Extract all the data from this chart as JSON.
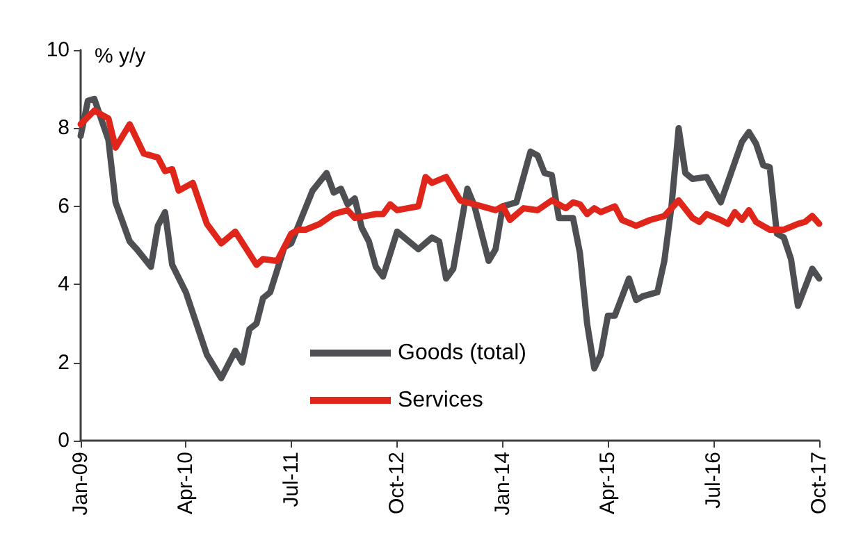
{
  "chart_data": {
    "type": "line",
    "ylabel": "% y/y",
    "xlim": [
      "2009-01",
      "2017-10"
    ],
    "xticks": [
      {
        "value": "2009-01",
        "label": "Jan-09"
      },
      {
        "value": "2010-04",
        "label": "Apr-10"
      },
      {
        "value": "2011-07",
        "label": "Jul-11"
      },
      {
        "value": "2012-10",
        "label": "Oct-12"
      },
      {
        "value": "2014-01",
        "label": "Jan-14"
      },
      {
        "value": "2015-04",
        "label": "Apr-15"
      },
      {
        "value": "2016-07",
        "label": "Jul-16"
      },
      {
        "value": "2017-10",
        "label": "Oct-17"
      }
    ],
    "ylim": [
      0,
      10
    ],
    "yticks": [
      0,
      2,
      4,
      6,
      8,
      10
    ],
    "grid": false,
    "legend": "bottom",
    "marker": "none",
    "line_style": "solid",
    "series": [
      {
        "name": "Goods (total)",
        "color": "#4d4f53",
        "x": [
          "2009-01",
          "2009-02",
          "2009-03",
          "2009-05",
          "2009-06",
          "2009-08",
          "2009-09",
          "2009-11",
          "2009-12",
          "2010-01",
          "2010-02",
          "2010-04",
          "2010-07",
          "2010-09",
          "2010-11",
          "2010-12",
          "2011-01",
          "2011-02",
          "2011-03",
          "2011-04",
          "2011-06",
          "2011-07",
          "2011-10",
          "2011-12",
          "2012-01",
          "2012-02",
          "2012-03",
          "2012-04",
          "2012-05",
          "2012-06",
          "2012-07",
          "2012-08",
          "2012-10",
          "2013-01",
          "2013-03",
          "2013-04",
          "2013-05",
          "2013-06",
          "2013-08",
          "2013-09",
          "2013-11",
          "2013-12",
          "2014-01",
          "2014-03",
          "2014-05",
          "2014-06",
          "2014-07",
          "2014-08",
          "2014-09",
          "2014-11",
          "2014-12",
          "2015-01",
          "2015-02",
          "2015-03",
          "2015-04",
          "2015-05",
          "2015-07",
          "2015-08",
          "2015-09",
          "2015-11",
          "2015-12",
          "2016-01",
          "2016-02",
          "2016-03",
          "2016-04",
          "2016-06",
          "2016-08",
          "2016-11",
          "2016-12",
          "2017-01",
          "2017-02",
          "2017-03",
          "2017-04",
          "2017-05",
          "2017-06",
          "2017-07",
          "2017-09",
          "2017-10"
        ],
        "values": [
          7.8,
          8.7,
          8.75,
          7.7,
          6.1,
          5.1,
          4.9,
          4.45,
          5.5,
          5.85,
          4.5,
          3.8,
          2.2,
          1.6,
          2.3,
          2.0,
          2.85,
          3.0,
          3.65,
          3.8,
          4.95,
          5.05,
          6.4,
          6.85,
          6.35,
          6.45,
          6.05,
          6.2,
          5.45,
          5.1,
          4.45,
          4.2,
          5.35,
          4.9,
          5.2,
          5.1,
          4.15,
          4.4,
          6.45,
          6.0,
          4.6,
          4.9,
          6.0,
          6.1,
          7.4,
          7.3,
          6.85,
          6.8,
          5.7,
          5.7,
          4.8,
          3.0,
          1.85,
          2.2,
          3.2,
          3.2,
          4.15,
          3.6,
          3.7,
          3.8,
          4.6,
          6.0,
          8.0,
          6.85,
          6.7,
          6.75,
          6.1,
          7.65,
          7.9,
          7.6,
          7.05,
          7.0,
          5.3,
          5.2,
          4.65,
          3.45,
          4.4,
          4.15
        ]
      },
      {
        "name": "Services",
        "color": "#e0251b",
        "x": [
          "2009-01",
          "2009-03",
          "2009-05",
          "2009-06",
          "2009-08",
          "2009-10",
          "2009-12",
          "2010-01",
          "2010-02",
          "2010-03",
          "2010-05",
          "2010-07",
          "2010-09",
          "2010-11",
          "2011-02",
          "2011-03",
          "2011-05",
          "2011-07",
          "2011-08",
          "2011-09",
          "2011-11",
          "2012-01",
          "2012-03",
          "2012-04",
          "2012-07",
          "2012-08",
          "2012-09",
          "2012-10",
          "2013-01",
          "2013-02",
          "2013-03",
          "2013-05",
          "2013-07",
          "2013-09",
          "2013-12",
          "2014-01",
          "2014-02",
          "2014-04",
          "2014-06",
          "2014-08",
          "2014-10",
          "2014-11",
          "2014-12",
          "2015-01",
          "2015-02",
          "2015-03",
          "2015-05",
          "2015-06",
          "2015-08",
          "2015-10",
          "2015-12",
          "2016-02",
          "2016-04",
          "2016-05",
          "2016-06",
          "2016-08",
          "2016-09",
          "2016-10",
          "2016-11",
          "2016-12",
          "2017-01",
          "2017-03",
          "2017-05",
          "2017-07",
          "2017-08",
          "2017-09",
          "2017-10"
        ],
        "values": [
          8.1,
          8.45,
          8.25,
          7.5,
          8.1,
          7.35,
          7.25,
          6.9,
          6.95,
          6.4,
          6.6,
          5.55,
          5.05,
          5.35,
          4.5,
          4.65,
          4.6,
          5.3,
          5.4,
          5.4,
          5.55,
          5.8,
          5.9,
          5.7,
          5.8,
          5.8,
          6.05,
          5.9,
          6.0,
          6.75,
          6.6,
          6.75,
          6.15,
          6.05,
          5.9,
          6.0,
          5.65,
          5.95,
          5.9,
          6.15,
          5.95,
          6.1,
          6.05,
          5.8,
          5.95,
          5.85,
          6.0,
          5.65,
          5.5,
          5.65,
          5.75,
          6.15,
          5.7,
          5.6,
          5.8,
          5.65,
          5.55,
          5.85,
          5.65,
          5.9,
          5.6,
          5.4,
          5.4,
          5.55,
          5.6,
          5.75,
          5.55
        ]
      }
    ]
  }
}
